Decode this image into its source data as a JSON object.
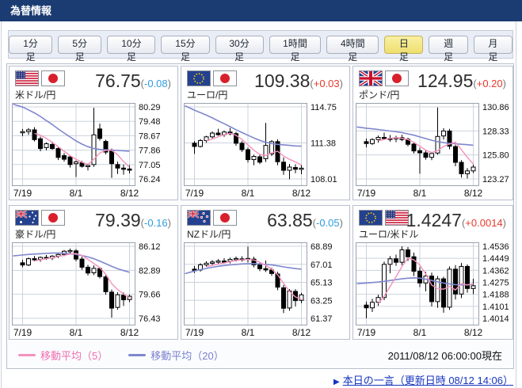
{
  "header": {
    "title": "為替情報"
  },
  "toolbar": {
    "buttons": [
      "1分足",
      "5分足",
      "10分足",
      "15分足",
      "30分足",
      "1時間足",
      "4時間足",
      "日足",
      "週足",
      "月足"
    ],
    "active_index": 7
  },
  "legend": {
    "ma5_label": "移動平均（5）",
    "ma20_label": "移動平均（20）"
  },
  "footer": {
    "timestamp": "2011/08/12 06:00:00現在",
    "link_arrow": "▶",
    "link_label": "本日の一言（更新日時 08/12 14:06）"
  },
  "colors": {
    "up_red": "#e8392a",
    "down_blue": "#2f9ce0",
    "ma5_pink": "#f591bd",
    "ma20_purple": "#7f87cf",
    "header_navy": "#1b3c72",
    "active_button_yellow": "#f3e87c",
    "grid": "#ccd3dd",
    "plot_border": "#99a1af"
  },
  "chart_data": [
    {
      "type": "candlestick",
      "id": "usd-jpy",
      "pair_label": "米ドル/円",
      "flags": [
        "us",
        "jp"
      ],
      "price": "76.75",
      "change": "-0.08",
      "direction": "down",
      "y_ticks": [
        "80.29",
        "79.48",
        "78.67",
        "77.86",
        "77.05",
        "76.24"
      ],
      "x_ticks": [
        {
          "label": "7/19",
          "i": 0
        },
        {
          "label": "8/1",
          "i": 9
        },
        {
          "label": "8/12",
          "i": 18
        }
      ],
      "candles": [
        [
          78.85,
          79.05,
          78.65,
          78.9
        ],
        [
          78.9,
          79.1,
          78.72,
          79.0
        ],
        [
          79.0,
          79.15,
          78.35,
          78.45
        ],
        [
          78.5,
          78.62,
          77.8,
          77.95
        ],
        [
          78.0,
          78.3,
          77.85,
          78.22
        ],
        [
          78.18,
          78.35,
          77.88,
          77.95
        ],
        [
          77.95,
          78.05,
          77.3,
          77.45
        ],
        [
          77.55,
          77.7,
          77.22,
          77.35
        ],
        [
          77.48,
          77.58,
          76.88,
          77.05
        ],
        [
          77.1,
          77.28,
          76.35,
          77.2
        ],
        [
          77.15,
          77.25,
          76.88,
          76.95
        ],
        [
          76.95,
          77.1,
          76.72,
          77.0
        ],
        [
          77.05,
          80.24,
          76.92,
          78.72
        ],
        [
          79.05,
          79.35,
          78.4,
          78.52
        ],
        [
          78.35,
          78.45,
          77.62,
          77.75
        ],
        [
          77.85,
          77.95,
          76.3,
          77.1
        ],
        [
          77.05,
          77.22,
          76.52,
          76.85
        ],
        [
          76.85,
          77.05,
          76.48,
          76.8
        ],
        [
          76.8,
          77.02,
          76.55,
          76.75
        ]
      ],
      "ma5": [
        null,
        null,
        78.8,
        78.7,
        78.52,
        78.3,
        78.05,
        77.8,
        77.55,
        77.35,
        77.18,
        77.05,
        77.35,
        77.7,
        77.85,
        77.85,
        77.6,
        77.22,
        76.9
      ],
      "ma20": [
        80.28,
        80.12,
        79.95,
        79.75,
        79.52,
        79.3,
        79.05,
        78.82,
        78.6,
        78.38,
        78.2,
        78.05,
        77.95,
        77.9,
        77.88,
        77.86,
        77.84,
        77.82,
        77.8
      ]
    },
    {
      "type": "candlestick",
      "id": "eur-jpy",
      "pair_label": "ユーロ/円",
      "flags": [
        "eu",
        "jp"
      ],
      "price": "109.38",
      "change": "+0.03",
      "direction": "up",
      "y_ticks": [
        "114.75",
        "111.38",
        "108.01"
      ],
      "x_ticks": [
        {
          "label": "7/19",
          "i": 0
        },
        {
          "label": "8/1",
          "i": 9
        },
        {
          "label": "8/12",
          "i": 18
        }
      ],
      "candles": [
        [
          111.35,
          111.55,
          110.35,
          111.05
        ],
        [
          111.05,
          111.75,
          110.95,
          111.6
        ],
        [
          111.6,
          112.05,
          111.4,
          111.95
        ],
        [
          111.95,
          112.45,
          111.8,
          112.3
        ],
        [
          112.3,
          112.7,
          112.05,
          112.15
        ],
        [
          112.15,
          112.55,
          111.95,
          112.4
        ],
        [
          112.4,
          112.78,
          112.1,
          112.22
        ],
        [
          112.25,
          112.42,
          111.12,
          111.35
        ],
        [
          111.35,
          111.55,
          110.55,
          110.75
        ],
        [
          110.75,
          110.95,
          109.55,
          109.82
        ],
        [
          109.82,
          110.28,
          109.3,
          110.12
        ],
        [
          110.08,
          110.32,
          109.4,
          109.58
        ],
        [
          109.9,
          113.25,
          109.6,
          111.15
        ],
        [
          110.35,
          111.65,
          110.15,
          111.5
        ],
        [
          111.5,
          111.72,
          109.3,
          109.62
        ],
        [
          109.58,
          110.02,
          108.4,
          108.82
        ],
        [
          108.82,
          109.42,
          107.98,
          109.12
        ],
        [
          109.08,
          109.38,
          108.55,
          108.92
        ],
        [
          108.92,
          109.32,
          108.45,
          109.02
        ]
      ],
      "ma5": [
        null,
        null,
        111.55,
        111.75,
        111.95,
        112.15,
        112.28,
        112.1,
        111.7,
        111.2,
        110.7,
        110.3,
        110.2,
        110.45,
        110.6,
        110.15,
        109.85,
        109.6,
        109.3
      ],
      "ma20": [
        114.45,
        114.22,
        113.98,
        113.72,
        113.45,
        113.18,
        112.9,
        112.62,
        112.35,
        112.1,
        111.85,
        111.62,
        111.45,
        111.32,
        111.25,
        111.2,
        111.15,
        111.1,
        111.08
      ]
    },
    {
      "type": "candlestick",
      "id": "gbp-jpy",
      "pair_label": "ポンド/円",
      "flags": [
        "uk",
        "jp"
      ],
      "price": "124.95",
      "change": "+0.20",
      "direction": "up",
      "y_ticks": [
        "130.86",
        "128.33",
        "125.80",
        "123.27"
      ],
      "x_ticks": [
        {
          "label": "7/19",
          "i": 0
        },
        {
          "label": "8/1",
          "i": 9
        },
        {
          "label": "8/12",
          "i": 18
        }
      ],
      "candles": [
        [
          127.2,
          127.52,
          126.6,
          127.0
        ],
        [
          127.0,
          127.55,
          126.85,
          127.42
        ],
        [
          127.42,
          127.85,
          127.1,
          127.65
        ],
        [
          127.65,
          128.15,
          127.4,
          127.55
        ],
        [
          127.55,
          127.9,
          127.2,
          127.45
        ],
        [
          127.5,
          127.82,
          127.15,
          127.62
        ],
        [
          127.62,
          127.92,
          127.25,
          127.42
        ],
        [
          127.45,
          127.62,
          126.7,
          126.92
        ],
        [
          126.95,
          127.15,
          125.95,
          126.22
        ],
        [
          126.25,
          126.55,
          123.82,
          126.02
        ],
        [
          126.02,
          126.35,
          125.3,
          125.55
        ],
        [
          125.55,
          126.12,
          125.25,
          125.95
        ],
        [
          126.0,
          130.8,
          125.82,
          127.75
        ],
        [
          127.8,
          128.62,
          127.42,
          128.32
        ],
        [
          128.32,
          128.55,
          126.4,
          126.72
        ],
        [
          126.68,
          126.88,
          124.6,
          125.02
        ],
        [
          125.02,
          125.25,
          123.42,
          123.82
        ],
        [
          123.82,
          124.42,
          123.32,
          124.12
        ],
        [
          124.12,
          124.78,
          123.9,
          124.52
        ]
      ],
      "ma5": [
        null,
        null,
        127.3,
        127.42,
        127.55,
        127.6,
        127.55,
        127.42,
        127.12,
        126.72,
        126.3,
        126.05,
        126.25,
        126.7,
        126.95,
        127.15,
        126.35,
        125.55,
        124.85
      ],
      "ma20": [
        128.62,
        128.55,
        128.48,
        128.4,
        128.32,
        128.25,
        128.15,
        128.02,
        127.88,
        127.7,
        127.52,
        127.35,
        127.2,
        127.1,
        127.02,
        126.98,
        126.92,
        126.88,
        126.82
      ]
    },
    {
      "type": "candlestick",
      "id": "aud-jpy",
      "pair_label": "豪ドル/円",
      "flags": [
        "au",
        "jp"
      ],
      "price": "79.39",
      "change": "-0.16",
      "direction": "down",
      "y_ticks": [
        "86.12",
        "82.89",
        "79.66",
        "76.43"
      ],
      "x_ticks": [
        {
          "label": "7/19",
          "i": 0
        },
        {
          "label": "8/1",
          "i": 9
        },
        {
          "label": "8/12",
          "i": 18
        }
      ],
      "candles": [
        [
          83.9,
          84.3,
          83.3,
          83.6
        ],
        [
          83.6,
          84.6,
          83.45,
          84.45
        ],
        [
          84.45,
          84.82,
          84.1,
          84.3
        ],
        [
          84.35,
          84.75,
          84.05,
          84.62
        ],
        [
          84.62,
          84.95,
          84.3,
          84.5
        ],
        [
          84.55,
          84.92,
          84.25,
          84.78
        ],
        [
          84.78,
          85.22,
          84.52,
          85.02
        ],
        [
          85.02,
          85.62,
          84.8,
          85.45
        ],
        [
          85.45,
          85.82,
          85.1,
          85.55
        ],
        [
          85.5,
          85.75,
          84.1,
          84.4
        ],
        [
          84.4,
          84.72,
          82.95,
          83.3
        ],
        [
          83.3,
          83.62,
          82.2,
          82.52
        ],
        [
          82.55,
          83.55,
          82.25,
          83.15
        ],
        [
          83.12,
          83.35,
          81.8,
          82.05
        ],
        [
          82.0,
          82.25,
          79.6,
          80.0
        ],
        [
          79.95,
          80.3,
          76.52,
          77.8
        ],
        [
          77.9,
          79.95,
          77.6,
          79.6
        ],
        [
          79.55,
          79.9,
          78.1,
          78.92
        ],
        [
          78.95,
          79.62,
          78.6,
          79.4
        ]
      ],
      "ma5": [
        null,
        null,
        84.15,
        84.3,
        84.45,
        84.55,
        84.72,
        84.9,
        85.08,
        85.15,
        84.9,
        84.35,
        83.8,
        83.25,
        82.35,
        81.1,
        80.3,
        79.7,
        79.15
      ],
      "ma20": [
        84.95,
        85.02,
        85.08,
        85.12,
        85.16,
        85.2,
        85.22,
        85.18,
        85.12,
        85.02,
        84.88,
        84.68,
        84.45,
        84.12,
        83.78,
        83.42,
        83.1,
        82.85,
        82.62
      ]
    },
    {
      "type": "candlestick",
      "id": "nzd-jpy",
      "pair_label": "NZドル/円",
      "flags": [
        "nz",
        "jp"
      ],
      "price": "63.85",
      "change": "-0.05",
      "direction": "down",
      "y_ticks": [
        "68.89",
        "67.01",
        "65.13",
        "63.25",
        "61.37"
      ],
      "x_ticks": [
        {
          "label": "7/19",
          "i": 0
        },
        {
          "label": "8/1",
          "i": 9
        },
        {
          "label": "8/12",
          "i": 18
        }
      ],
      "candles": [
        [
          66.5,
          66.82,
          66.1,
          66.42
        ],
        [
          66.42,
          67.12,
          66.25,
          66.95
        ],
        [
          66.95,
          67.32,
          66.75,
          67.12
        ],
        [
          67.12,
          67.45,
          66.9,
          67.25
        ],
        [
          67.25,
          67.55,
          67.05,
          67.35
        ],
        [
          67.35,
          67.65,
          67.1,
          67.32
        ],
        [
          67.32,
          67.7,
          67.1,
          67.52
        ],
        [
          67.52,
          67.82,
          67.3,
          67.62
        ],
        [
          67.58,
          67.85,
          67.3,
          67.45
        ],
        [
          67.5,
          68.85,
          67.2,
          67.62
        ],
        [
          67.55,
          67.8,
          66.7,
          66.95
        ],
        [
          66.95,
          67.15,
          66.3,
          66.55
        ],
        [
          66.55,
          67.4,
          66.2,
          66.42
        ],
        [
          66.42,
          66.65,
          65.8,
          66.05
        ],
        [
          66.0,
          66.22,
          64.3,
          64.62
        ],
        [
          64.55,
          64.85,
          61.92,
          62.42
        ],
        [
          62.45,
          64.42,
          62.15,
          64.22
        ],
        [
          64.18,
          64.42,
          62.6,
          63.22
        ],
        [
          63.25,
          64.02,
          62.95,
          63.82
        ]
      ],
      "ma5": [
        null,
        null,
        66.75,
        66.9,
        67.02,
        67.15,
        67.28,
        67.4,
        67.48,
        67.52,
        67.45,
        67.22,
        66.9,
        66.5,
        65.92,
        65.02,
        64.18,
        63.6,
        63.35
      ],
      "ma20": [
        66.3,
        66.45,
        66.58,
        66.7,
        66.8,
        66.88,
        66.95,
        67.0,
        67.05,
        67.06,
        67.06,
        67.04,
        67.0,
        66.94,
        66.85,
        66.74,
        66.64,
        66.56,
        66.5
      ]
    },
    {
      "type": "candlestick",
      "id": "eur-usd",
      "pair_label": "ユーロ/米ドル",
      "flags": [
        "eu",
        "us"
      ],
      "price": "1.4247",
      "change": "+0.0014",
      "direction": "up",
      "y_ticks": [
        "1.4536",
        "1.4449",
        "1.4362",
        "1.4275",
        "1.4188",
        "1.4101",
        "1.4014"
      ],
      "x_ticks": [
        {
          "label": "7/19",
          "i": 0
        },
        {
          "label": "8/1",
          "i": 9
        },
        {
          "label": "8/12",
          "i": 18
        }
      ],
      "candles": [
        [
          1.411,
          1.4135,
          1.4014,
          1.409
        ],
        [
          1.409,
          1.4155,
          1.406,
          1.413
        ],
        [
          1.413,
          1.4185,
          1.4105,
          1.4165
        ],
        [
          1.4165,
          1.4425,
          1.4145,
          1.4405
        ],
        [
          1.4405,
          1.4465,
          1.434,
          1.4445
        ],
        [
          1.4445,
          1.4475,
          1.4395,
          1.442
        ],
        [
          1.442,
          1.4535,
          1.44,
          1.451
        ],
        [
          1.451,
          1.453,
          1.443,
          1.446
        ],
        [
          1.446,
          1.449,
          1.432,
          1.4355
        ],
        [
          1.4355,
          1.4385,
          1.424,
          1.427
        ],
        [
          1.427,
          1.435,
          1.421,
          1.432
        ],
        [
          1.432,
          1.4345,
          1.41,
          1.4135
        ],
        [
          1.4135,
          1.432,
          1.409,
          1.43
        ],
        [
          1.43,
          1.4315,
          1.4055,
          1.4095
        ],
        [
          1.4095,
          1.439,
          1.4075,
          1.437
        ],
        [
          1.437,
          1.44,
          1.415,
          1.419
        ],
        [
          1.419,
          1.4415,
          1.416,
          1.439
        ],
        [
          1.439,
          1.4405,
          1.42,
          1.423
        ],
        [
          1.423,
          1.43,
          1.419,
          1.425
        ]
      ],
      "ma5": [
        null,
        null,
        1.412,
        1.4175,
        1.4245,
        1.4315,
        1.439,
        1.445,
        1.4438,
        1.44,
        1.4335,
        1.4255,
        1.423,
        1.4225,
        1.4245,
        1.422,
        1.4265,
        1.4255,
        1.4265
      ],
      "ma20": [
        1.427,
        1.4273,
        1.4277,
        1.4282,
        1.4288,
        1.4294,
        1.43,
        1.4305,
        1.4307,
        1.4305,
        1.4298,
        1.4288,
        1.4278,
        1.427,
        1.4263,
        1.4258,
        1.4256,
        1.4258,
        1.4262
      ]
    }
  ]
}
